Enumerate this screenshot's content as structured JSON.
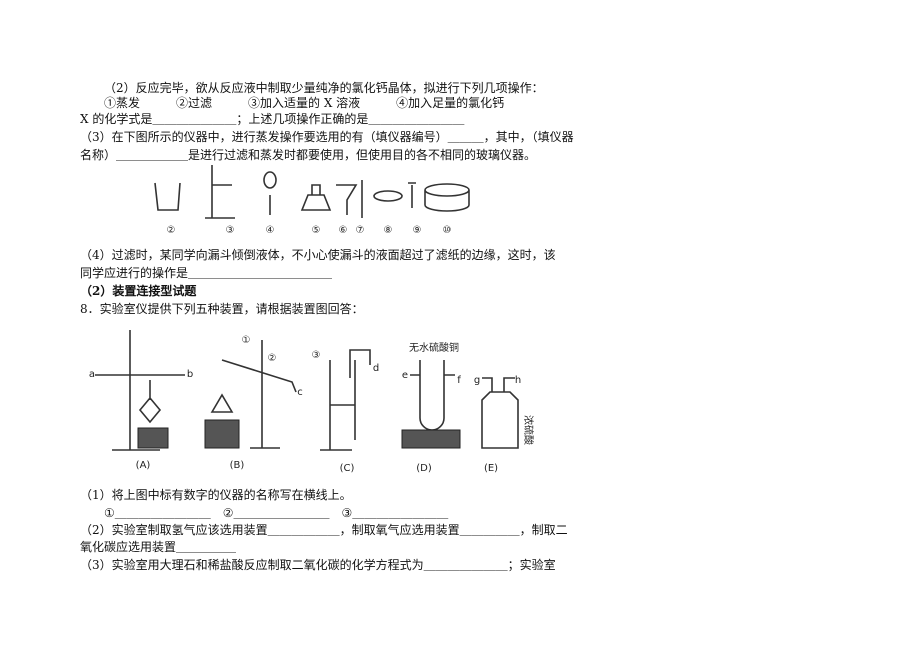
{
  "lines": [
    "（2）反应完毕，欲从反应液中制取少量纯净的氯化钙晶体，拟进行下列几项操作：",
    "①蒸发　　　②过滤　　　③加入适量的 X 溶液　　　④加入足量的氯化钙",
    "X 的化学式是＿＿＿＿＿＿＿；上述几项操作正确的是＿＿＿＿＿＿＿＿",
    "（3）在下图所示的仪器中，进行蒸发操作要选用的有（填仪器编号）＿＿＿，其中，（填仪器",
    "名称）＿＿＿＿＿＿是进行过滤和蒸发时都要使用，但使用目的各不相同的玻璃仪器。",
    "（4）过滤时，某同学向漏斗倾倒液体，不小心使漏斗的液面超过了滤纸的边缘，这时，该",
    "同学应进行的操作是＿＿＿＿＿＿＿＿＿＿＿＿",
    "（2）装置连接型试题",
    "8．实验室仪提供下列五种装置，请根据装置图回答：",
    "（1）将上图中标有数字的仪器的名称写在横线上。",
    "①＿＿＿＿＿＿＿＿　②＿＿＿＿＿＿＿＿　③＿＿＿＿＿＿＿＿",
    "（2）实验室制取氢气应该选用装置＿＿＿＿＿＿，制取氧气应选用装置＿＿＿＿＿，制取二",
    "氧化碳应选用装置＿＿＿＿＿",
    "（3）实验室用大理石和稀盐酸反应制取二氧化碳的化学方程式为＿＿＿＿＿＿＿；实验室"
  ],
  "figure1": {
    "labels": [
      "②",
      "③",
      "④",
      "⑤",
      "⑥",
      "⑦",
      "⑧",
      "⑨",
      "⑩"
    ]
  },
  "figure2": {
    "letters": [
      "a",
      "b",
      "c",
      "d",
      "e",
      "f",
      "g",
      "h"
    ],
    "numbers": [
      "①",
      "②",
      "③"
    ],
    "notes": [
      "无水硫酸铜",
      "浓硫酸"
    ],
    "captions": [
      "(A)",
      "(B)",
      "(C)",
      "(D)",
      "(E)"
    ]
  }
}
